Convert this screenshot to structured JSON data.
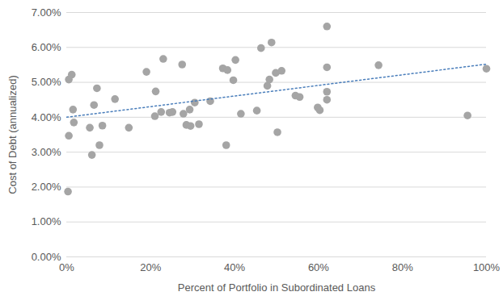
{
  "chart_data": {
    "type": "scatter",
    "x_label": "Percent of Portfolio in Subordinated Loans",
    "y_label": "Cost of Debt (annualized)",
    "xlim": [
      0,
      100
    ],
    "xticks": [
      {
        "value": 0,
        "label": "0%"
      },
      {
        "value": 20,
        "label": "20%"
      },
      {
        "value": 40,
        "label": "40%"
      },
      {
        "value": 60,
        "label": "60%"
      },
      {
        "value": 80,
        "label": "80%"
      },
      {
        "value": 100,
        "label": "100%"
      }
    ],
    "ylim": [
      0,
      7
    ],
    "yticks": [
      {
        "value": 0,
        "label": "0.00%"
      },
      {
        "value": 1,
        "label": "1.00%"
      },
      {
        "value": 2,
        "label": "2.00%"
      },
      {
        "value": 3,
        "label": "3.00%"
      },
      {
        "value": 4,
        "label": "4.00%"
      },
      {
        "value": 5,
        "label": "5.00%"
      },
      {
        "value": 6,
        "label": "6.00%"
      },
      {
        "value": 7,
        "label": "7.00%"
      }
    ],
    "grid": "y",
    "series": [
      {
        "type": "scatter",
        "marker": "circle",
        "color": "#a5a5a5",
        "x": [
          0.3,
          0.5,
          0.5,
          1.2,
          1.5,
          1.7,
          5.5,
          6,
          6.5,
          7.2,
          7.8,
          8.5,
          11.5,
          14.8,
          19,
          21,
          21.2,
          22.5,
          23,
          24.5,
          25.2,
          27.5,
          27.8,
          28.5,
          29.3,
          29.5,
          30.5,
          31.5,
          34.2,
          37.2,
          38,
          38.3,
          39.7,
          40.2,
          41.5,
          45.3,
          46.3,
          47.8,
          48.3,
          48.8,
          49.8,
          50.2,
          51.2,
          54.5,
          55.5,
          59.8,
          60.3,
          62,
          62,
          62,
          62,
          74.3,
          95.5,
          100
        ],
        "values": [
          1.87,
          3.47,
          5.08,
          5.22,
          4.22,
          3.85,
          3.7,
          2.92,
          4.35,
          4.83,
          3.2,
          3.76,
          4.52,
          3.7,
          5.3,
          4.03,
          4.74,
          4.15,
          5.67,
          4.13,
          4.15,
          5.51,
          4.1,
          3.78,
          4.22,
          3.75,
          4.42,
          3.8,
          4.46,
          5.4,
          3.2,
          5.35,
          5.06,
          5.64,
          4.1,
          4.19,
          5.98,
          4.9,
          5.08,
          6.14,
          5.27,
          3.57,
          5.33,
          4.62,
          4.58,
          4.28,
          4.2,
          6.6,
          5.43,
          4.73,
          4.5,
          5.49,
          4.05,
          5.39
        ]
      },
      {
        "type": "line",
        "line_style": "dotted",
        "color": "#4a7ebb",
        "x": [
          0,
          100
        ],
        "values": [
          4.0,
          5.52
        ]
      }
    ]
  }
}
